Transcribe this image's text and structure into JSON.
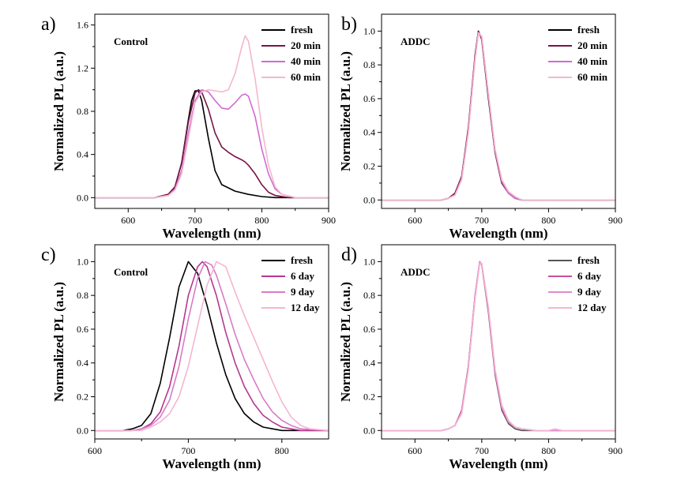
{
  "chart_data": [
    {
      "type": "line",
      "panel": "a)",
      "annotation": "Control",
      "xlabel": "Wavelength (nm)",
      "ylabel": "Normalized PL (a.u.)",
      "xlim": [
        550,
        900
      ],
      "ylim": [
        -0.1,
        1.7
      ],
      "xticks": [
        600,
        700,
        800,
        900
      ],
      "yticks": [
        0.0,
        0.4,
        0.8,
        1.2,
        1.6
      ],
      "ytick_labels": [
        "0.0",
        "0.4",
        "0.8",
        "1.2",
        "1.6"
      ],
      "legend_position": "top-right",
      "series": [
        {
          "name": "fresh",
          "color": "#000000",
          "x": [
            550,
            640,
            660,
            670,
            680,
            690,
            695,
            700,
            705,
            710,
            720,
            730,
            740,
            760,
            780,
            800,
            820,
            850,
            900
          ],
          "y": [
            0,
            0,
            0.03,
            0.1,
            0.32,
            0.72,
            0.9,
            0.99,
            0.99,
            0.9,
            0.55,
            0.25,
            0.12,
            0.06,
            0.03,
            0.01,
            0,
            0,
            0
          ]
        },
        {
          "name": "20 min",
          "color": "#7a1245",
          "x": [
            550,
            640,
            660,
            670,
            680,
            690,
            700,
            705,
            710,
            720,
            730,
            740,
            750,
            760,
            770,
            775,
            780,
            790,
            800,
            810,
            820,
            840,
            900
          ],
          "y": [
            0,
            0,
            0.03,
            0.1,
            0.32,
            0.7,
            0.97,
            1.0,
            0.98,
            0.82,
            0.6,
            0.47,
            0.42,
            0.38,
            0.35,
            0.33,
            0.3,
            0.22,
            0.12,
            0.05,
            0.02,
            0,
            0
          ]
        },
        {
          "name": "40 min",
          "color": "#d16bd1",
          "x": [
            550,
            640,
            660,
            670,
            680,
            690,
            700,
            710,
            720,
            730,
            740,
            750,
            760,
            770,
            775,
            780,
            790,
            800,
            810,
            820,
            830,
            850,
            900
          ],
          "y": [
            0,
            0,
            0.02,
            0.08,
            0.25,
            0.6,
            0.9,
            1.0,
            0.98,
            0.9,
            0.83,
            0.82,
            0.88,
            0.95,
            0.96,
            0.94,
            0.75,
            0.45,
            0.22,
            0.08,
            0.03,
            0,
            0
          ]
        },
        {
          "name": "60 min",
          "color": "#f2b8cc",
          "x": [
            550,
            640,
            660,
            670,
            680,
            690,
            700,
            710,
            720,
            730,
            740,
            750,
            760,
            770,
            775,
            780,
            790,
            800,
            810,
            820,
            830,
            850,
            900
          ],
          "y": [
            0,
            0,
            0.02,
            0.07,
            0.22,
            0.55,
            0.88,
            0.98,
            1.0,
            0.99,
            0.98,
            1.0,
            1.15,
            1.4,
            1.5,
            1.45,
            1.1,
            0.65,
            0.3,
            0.1,
            0.03,
            0,
            0
          ]
        }
      ]
    },
    {
      "type": "line",
      "panel": "b)",
      "annotation": "ADDC",
      "xlabel": "Wavelength (nm)",
      "ylabel": "Normalized PL (a.u.)",
      "xlim": [
        550,
        900
      ],
      "ylim": [
        -0.05,
        1.1
      ],
      "xticks": [
        600,
        700,
        800,
        900
      ],
      "yticks": [
        0.0,
        0.2,
        0.4,
        0.6,
        0.8,
        1.0
      ],
      "ytick_labels": [
        "0.0",
        "0.2",
        "0.4",
        "0.6",
        "0.8",
        "1.0"
      ],
      "legend_position": "top-right",
      "series": [
        {
          "name": "fresh",
          "color": "#000000",
          "x": [
            550,
            640,
            650,
            660,
            670,
            680,
            690,
            695,
            700,
            710,
            720,
            730,
            740,
            750,
            760,
            780,
            800,
            900
          ],
          "y": [
            0,
            0,
            0.01,
            0.04,
            0.14,
            0.42,
            0.85,
            1.0,
            0.95,
            0.6,
            0.28,
            0.1,
            0.04,
            0.01,
            0,
            0,
            0,
            0
          ]
        },
        {
          "name": "20 min",
          "color": "#7a1245",
          "x": [
            550,
            640,
            650,
            660,
            670,
            680,
            690,
            695,
            700,
            710,
            720,
            730,
            740,
            750,
            760,
            780,
            800,
            900
          ],
          "y": [
            0,
            0,
            0.01,
            0.04,
            0.14,
            0.43,
            0.86,
            1.0,
            0.95,
            0.61,
            0.28,
            0.1,
            0.04,
            0.01,
            0,
            0,
            0,
            0
          ]
        },
        {
          "name": "40 min",
          "color": "#d16bd1",
          "x": [
            550,
            640,
            650,
            660,
            670,
            680,
            690,
            695,
            700,
            710,
            720,
            730,
            740,
            750,
            760,
            780,
            800,
            900
          ],
          "y": [
            0,
            0,
            0.01,
            0.03,
            0.13,
            0.41,
            0.84,
            0.99,
            0.96,
            0.62,
            0.29,
            0.11,
            0.04,
            0.01,
            0,
            0,
            0,
            0
          ]
        },
        {
          "name": "60 min",
          "color": "#f2b8cc",
          "x": [
            550,
            640,
            650,
            660,
            670,
            680,
            690,
            695,
            700,
            710,
            720,
            730,
            740,
            750,
            760,
            780,
            800,
            900
          ],
          "y": [
            0,
            0,
            0.01,
            0.03,
            0.12,
            0.4,
            0.83,
            0.99,
            0.97,
            0.63,
            0.3,
            0.12,
            0.05,
            0.02,
            0,
            0,
            0,
            0
          ]
        }
      ]
    },
    {
      "type": "line",
      "panel": "c)",
      "annotation": "Control",
      "xlabel": "Wavelength (nm)",
      "ylabel": "Normalized PL (a.u.)",
      "xlim": [
        600,
        850
      ],
      "ylim": [
        -0.05,
        1.1
      ],
      "xticks": [
        600,
        700,
        800
      ],
      "yticks": [
        0.0,
        0.2,
        0.4,
        0.6,
        0.8,
        1.0
      ],
      "ytick_labels": [
        "0.0",
        "0.2",
        "0.4",
        "0.6",
        "0.8",
        "1.0"
      ],
      "legend_position": "top-right",
      "series": [
        {
          "name": "fresh",
          "color": "#000000",
          "x": [
            600,
            630,
            640,
            650,
            660,
            670,
            680,
            690,
            700,
            710,
            720,
            730,
            740,
            750,
            760,
            770,
            780,
            790,
            800,
            820,
            850
          ],
          "y": [
            0,
            0,
            0.01,
            0.03,
            0.1,
            0.28,
            0.55,
            0.85,
            1.0,
            0.93,
            0.74,
            0.52,
            0.33,
            0.19,
            0.1,
            0.05,
            0.02,
            0.01,
            0,
            0,
            0
          ]
        },
        {
          "name": "6 day",
          "color": "#b5388f",
          "x": [
            600,
            640,
            650,
            660,
            670,
            680,
            690,
            700,
            710,
            715,
            720,
            730,
            740,
            750,
            760,
            770,
            780,
            790,
            800,
            810,
            820,
            850
          ],
          "y": [
            0,
            0,
            0.01,
            0.04,
            0.11,
            0.26,
            0.5,
            0.8,
            0.97,
            1.0,
            0.97,
            0.8,
            0.58,
            0.4,
            0.26,
            0.16,
            0.09,
            0.05,
            0.02,
            0.01,
            0,
            0
          ]
        },
        {
          "name": "9 day",
          "color": "#d97ac7",
          "x": [
            600,
            640,
            650,
            660,
            670,
            680,
            690,
            700,
            710,
            718,
            725,
            730,
            740,
            750,
            760,
            770,
            780,
            790,
            800,
            810,
            820,
            850
          ],
          "y": [
            0,
            0,
            0.01,
            0.03,
            0.08,
            0.18,
            0.38,
            0.66,
            0.9,
            1.0,
            0.98,
            0.92,
            0.75,
            0.57,
            0.42,
            0.3,
            0.19,
            0.11,
            0.06,
            0.03,
            0.01,
            0
          ]
        },
        {
          "name": "12 day",
          "color": "#f5b5d2",
          "x": [
            600,
            650,
            660,
            670,
            680,
            690,
            700,
            710,
            720,
            730,
            740,
            750,
            760,
            770,
            780,
            790,
            800,
            810,
            820,
            830,
            850
          ],
          "y": [
            0,
            0,
            0.02,
            0.05,
            0.1,
            0.2,
            0.38,
            0.62,
            0.86,
            1.0,
            0.97,
            0.82,
            0.68,
            0.55,
            0.42,
            0.29,
            0.17,
            0.08,
            0.03,
            0.01,
            0
          ]
        }
      ]
    },
    {
      "type": "line",
      "panel": "d)",
      "annotation": "ADDC",
      "xlabel": "Wavelength (nm)",
      "ylabel": "Normalized PL (a.u.)",
      "xlim": [
        550,
        900
      ],
      "ylim": [
        -0.05,
        1.1
      ],
      "xticks": [
        600,
        700,
        800,
        900
      ],
      "yticks": [
        0.0,
        0.2,
        0.4,
        0.6,
        0.8,
        1.0
      ],
      "ytick_labels": [
        "0.0",
        "0.2",
        "0.4",
        "0.6",
        "0.8",
        "1.0"
      ],
      "legend_position": "top-right",
      "series": [
        {
          "name": "fresh",
          "color": "#555555",
          "x": [
            550,
            640,
            650,
            660,
            670,
            680,
            690,
            697,
            700,
            710,
            720,
            730,
            740,
            750,
            760,
            780,
            800,
            900
          ],
          "y": [
            0,
            0,
            0.01,
            0.03,
            0.12,
            0.38,
            0.8,
            1.0,
            0.98,
            0.7,
            0.33,
            0.12,
            0.04,
            0.01,
            0,
            0,
            0,
            0
          ]
        },
        {
          "name": "6 day",
          "color": "#c7509e",
          "x": [
            550,
            640,
            650,
            660,
            670,
            680,
            690,
            697,
            700,
            710,
            720,
            730,
            740,
            750,
            760,
            780,
            800,
            900
          ],
          "y": [
            0,
            0,
            0.01,
            0.03,
            0.12,
            0.38,
            0.8,
            1.0,
            0.98,
            0.71,
            0.34,
            0.13,
            0.05,
            0.02,
            0.01,
            0,
            0,
            0
          ]
        },
        {
          "name": "9 day",
          "color": "#e08ad0",
          "x": [
            550,
            640,
            650,
            660,
            670,
            680,
            690,
            697,
            700,
            710,
            720,
            730,
            740,
            750,
            760,
            780,
            800,
            900
          ],
          "y": [
            0,
            0,
            0.01,
            0.03,
            0.11,
            0.37,
            0.79,
            1.0,
            0.98,
            0.72,
            0.35,
            0.14,
            0.05,
            0.02,
            0.01,
            0,
            0,
            0
          ]
        },
        {
          "name": "12 day",
          "color": "#f5b5d2",
          "x": [
            550,
            640,
            650,
            660,
            670,
            680,
            690,
            697,
            700,
            710,
            720,
            730,
            740,
            750,
            760,
            780,
            800,
            810,
            820,
            900
          ],
          "y": [
            0,
            0,
            0.01,
            0.03,
            0.1,
            0.36,
            0.78,
            0.99,
            0.99,
            0.73,
            0.36,
            0.15,
            0.06,
            0.02,
            0.01,
            0,
            0,
            0.01,
            0,
            0
          ]
        }
      ]
    }
  ]
}
